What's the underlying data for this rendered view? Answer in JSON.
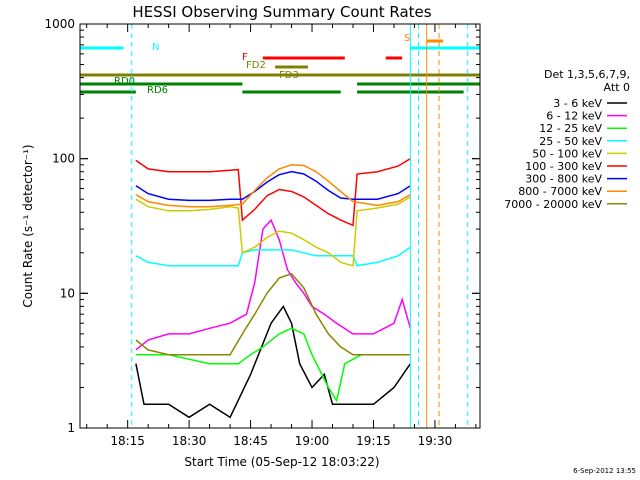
{
  "chart_data": {
    "type": "line",
    "title": "HESSI Observing Summary Count Rates",
    "xlabel": "Start Time (05-Sep-12 18:03:22)",
    "ylabel": "Count Rate (s⁻¹ detector⁻¹)",
    "xlim": [
      "18:03:22",
      "19:41:00"
    ],
    "ylim": [
      1,
      1000
    ],
    "yscale": "log",
    "x_ticks": [
      "18:15",
      "18:30",
      "18:45",
      "19:00",
      "19:15",
      "19:30"
    ],
    "y_ticks": [
      "1",
      "10",
      "100",
      "1000"
    ],
    "legend_title": [
      "Det 1,3,5,6,7,9,",
      "Att 0"
    ],
    "legend_position": "right",
    "series": [
      {
        "name": "3 - 6 keV",
        "color": "#000000",
        "points": [
          [
            "18:17",
            3
          ],
          [
            "18:19",
            1.5
          ],
          [
            "18:25",
            1.5
          ],
          [
            "18:30",
            1.2
          ],
          [
            "18:35",
            1.5
          ],
          [
            "18:40",
            1.2
          ],
          [
            "18:45",
            2.5
          ],
          [
            "18:50",
            6
          ],
          [
            "18:53",
            8
          ],
          [
            "18:55",
            6
          ],
          [
            "18:57",
            3
          ],
          [
            "19:00",
            2
          ],
          [
            "19:03",
            2.5
          ],
          [
            "19:05",
            1.5
          ],
          [
            "19:10",
            1.5
          ],
          [
            "19:15",
            1.5
          ],
          [
            "19:20",
            2
          ],
          [
            "19:24",
            3
          ]
        ]
      },
      {
        "name": "6 - 12 keV",
        "color": "#ff00ff",
        "points": [
          [
            "18:17",
            3.8
          ],
          [
            "18:20",
            4.5
          ],
          [
            "18:25",
            5
          ],
          [
            "18:30",
            5
          ],
          [
            "18:35",
            5.5
          ],
          [
            "18:40",
            6
          ],
          [
            "18:44",
            7
          ],
          [
            "18:46",
            12
          ],
          [
            "18:48",
            30
          ],
          [
            "18:50",
            35
          ],
          [
            "18:52",
            25
          ],
          [
            "18:54",
            15
          ],
          [
            "18:56",
            12
          ],
          [
            "18:58",
            10
          ],
          [
            "19:00",
            8
          ],
          [
            "19:03",
            7
          ],
          [
            "19:06",
            6
          ],
          [
            "19:10",
            5
          ],
          [
            "19:15",
            5
          ],
          [
            "19:20",
            6
          ],
          [
            "19:22",
            9
          ],
          [
            "19:24",
            5.5
          ]
        ]
      },
      {
        "name": "12 - 25 keV",
        "color": "#00ff00",
        "points": [
          [
            "18:17",
            3.5
          ],
          [
            "18:25",
            3.5
          ],
          [
            "18:35",
            3
          ],
          [
            "18:42",
            3
          ],
          [
            "18:45",
            3.5
          ],
          [
            "18:48",
            4
          ],
          [
            "18:52",
            5
          ],
          [
            "18:55",
            5.5
          ],
          [
            "18:58",
            5
          ],
          [
            "19:00",
            3.5
          ],
          [
            "19:04",
            2
          ],
          [
            "19:06",
            1.6
          ],
          [
            "19:08",
            3
          ],
          [
            "19:12",
            3.5
          ],
          [
            "19:18",
            3.5
          ],
          [
            "19:24",
            3.5
          ]
        ]
      },
      {
        "name": "25 - 50 keV",
        "color": "#00ffff",
        "points": [
          [
            "18:17",
            19
          ],
          [
            "18:20",
            17
          ],
          [
            "18:25",
            16
          ],
          [
            "18:30",
            16
          ],
          [
            "18:35",
            16
          ],
          [
            "18:40",
            16
          ],
          [
            "18:42",
            16
          ],
          [
            "18:43",
            20
          ],
          [
            "18:46",
            21
          ],
          [
            "18:49",
            21
          ],
          [
            "18:52",
            21
          ],
          [
            "18:55",
            21
          ],
          [
            "18:58",
            20
          ],
          [
            "19:01",
            19
          ],
          [
            "19:04",
            19
          ],
          [
            "19:07",
            19
          ],
          [
            "19:10",
            19
          ],
          [
            "19:11",
            16
          ],
          [
            "19:16",
            17
          ],
          [
            "19:21",
            19
          ],
          [
            "19:24",
            22
          ]
        ]
      },
      {
        "name": "50 - 100 keV",
        "color": "#cccc00",
        "points": [
          [
            "18:17",
            50
          ],
          [
            "18:20",
            44
          ],
          [
            "18:25",
            41
          ],
          [
            "18:30",
            41
          ],
          [
            "18:35",
            42
          ],
          [
            "18:40",
            44
          ],
          [
            "18:42",
            43
          ],
          [
            "18:43",
            20
          ],
          [
            "18:46",
            22
          ],
          [
            "18:49",
            26
          ],
          [
            "18:52",
            29
          ],
          [
            "18:55",
            28
          ],
          [
            "18:58",
            25
          ],
          [
            "19:01",
            22
          ],
          [
            "19:04",
            20
          ],
          [
            "19:07",
            17
          ],
          [
            "19:10",
            16
          ],
          [
            "19:11",
            41
          ],
          [
            "19:16",
            43
          ],
          [
            "19:21",
            46
          ],
          [
            "19:24",
            52
          ]
        ]
      },
      {
        "name": "100 - 300 keV",
        "color": "#ff0000",
        "points": [
          [
            "18:17",
            97
          ],
          [
            "18:20",
            84
          ],
          [
            "18:25",
            80
          ],
          [
            "18:30",
            80
          ],
          [
            "18:35",
            80
          ],
          [
            "18:40",
            82
          ],
          [
            "18:42",
            83
          ],
          [
            "18:43",
            35
          ],
          [
            "18:46",
            42
          ],
          [
            "18:49",
            53
          ],
          [
            "18:52",
            59
          ],
          [
            "18:55",
            57
          ],
          [
            "18:58",
            52
          ],
          [
            "19:01",
            45
          ],
          [
            "19:04",
            39
          ],
          [
            "19:07",
            35
          ],
          [
            "19:10",
            32
          ],
          [
            "19:11",
            77
          ],
          [
            "19:16",
            80
          ],
          [
            "19:21",
            88
          ],
          [
            "19:24",
            100
          ]
        ]
      },
      {
        "name": "300 - 800 keV",
        "color": "#0000ff",
        "points": [
          [
            "18:17",
            63
          ],
          [
            "18:20",
            55
          ],
          [
            "18:25",
            50
          ],
          [
            "18:30",
            49
          ],
          [
            "18:35",
            49
          ],
          [
            "18:40",
            50
          ],
          [
            "18:43",
            50
          ],
          [
            "18:46",
            57
          ],
          [
            "18:49",
            67
          ],
          [
            "18:52",
            76
          ],
          [
            "18:55",
            80
          ],
          [
            "18:58",
            77
          ],
          [
            "19:01",
            68
          ],
          [
            "19:04",
            58
          ],
          [
            "19:07",
            51
          ],
          [
            "19:10",
            50
          ],
          [
            "19:16",
            50
          ],
          [
            "19:21",
            55
          ],
          [
            "19:24",
            63
          ]
        ]
      },
      {
        "name": "800 - 7000 keV",
        "color": "#ff8800",
        "points": [
          [
            "18:17",
            54
          ],
          [
            "18:20",
            48
          ],
          [
            "18:25",
            45
          ],
          [
            "18:30",
            44
          ],
          [
            "18:35",
            44
          ],
          [
            "18:40",
            45
          ],
          [
            "18:43",
            46
          ],
          [
            "18:46",
            58
          ],
          [
            "18:49",
            72
          ],
          [
            "18:52",
            84
          ],
          [
            "18:55",
            90
          ],
          [
            "18:58",
            89
          ],
          [
            "19:01",
            80
          ],
          [
            "19:04",
            68
          ],
          [
            "19:07",
            57
          ],
          [
            "19:10",
            48
          ],
          [
            "19:16",
            45
          ],
          [
            "19:21",
            48
          ],
          [
            "19:24",
            54
          ]
        ]
      },
      {
        "name": "7000 - 20000 keV",
        "color": "#888800",
        "points": [
          [
            "18:17",
            4.5
          ],
          [
            "18:20",
            3.8
          ],
          [
            "18:25",
            3.5
          ],
          [
            "18:30",
            3.5
          ],
          [
            "18:35",
            3.5
          ],
          [
            "18:40",
            3.5
          ],
          [
            "18:43",
            5
          ],
          [
            "18:46",
            7
          ],
          [
            "18:49",
            10
          ],
          [
            "18:52",
            13
          ],
          [
            "18:55",
            14
          ],
          [
            "18:58",
            11
          ],
          [
            "19:01",
            7
          ],
          [
            "19:04",
            5
          ],
          [
            "19:07",
            4
          ],
          [
            "19:10",
            3.5
          ],
          [
            "19:16",
            3.5
          ],
          [
            "19:24",
            3.5
          ]
        ]
      }
    ],
    "flag_bars": [
      {
        "label": "N",
        "color": "#00ffff",
        "segments": [
          [
            "18:03:22",
            "18:14"
          ],
          [
            "19:24",
            "19:41"
          ]
        ]
      },
      {
        "label": "F",
        "color": "#ff0000",
        "segments": [
          [
            "18:48",
            "19:08"
          ],
          [
            "19:18",
            "19:22"
          ]
        ]
      },
      {
        "label": "S",
        "color": "#ff8800",
        "segments": [
          [
            "19:28",
            "19:32"
          ]
        ]
      },
      {
        "label": "FD2",
        "color": "#808000",
        "segments": [
          [
            "18:51",
            "18:59"
          ]
        ]
      },
      {
        "label": "FD3",
        "color": "#808000",
        "segments": [
          [
            "18:03:22",
            "19:41"
          ]
        ]
      },
      {
        "label": "RD0",
        "color": "#008000",
        "segments": [
          [
            "18:03:22",
            "18:43"
          ],
          [
            "19:11",
            "19:41"
          ]
        ]
      },
      {
        "label": "RD6",
        "color": "#008000",
        "segments": [
          [
            "18:03:22",
            "18:17"
          ],
          [
            "18:43",
            "19:07"
          ],
          [
            "19:11",
            "19:37"
          ]
        ]
      }
    ],
    "vertical_lines": [
      {
        "time": "18:16",
        "color": "#00ffff",
        "style": "dashed"
      },
      {
        "time": "19:24",
        "color": "#00ffff",
        "style": "solid"
      },
      {
        "time": "19:26",
        "color": "#00ffff",
        "style": "dashed"
      },
      {
        "time": "19:28",
        "color": "#ff8800",
        "style": "solid"
      },
      {
        "time": "19:31",
        "color": "#ff8800",
        "style": "dashed"
      },
      {
        "time": "19:38",
        "color": "#00ffff",
        "style": "dashed"
      }
    ],
    "timestamp": "6-Sep-2012 13:55"
  }
}
